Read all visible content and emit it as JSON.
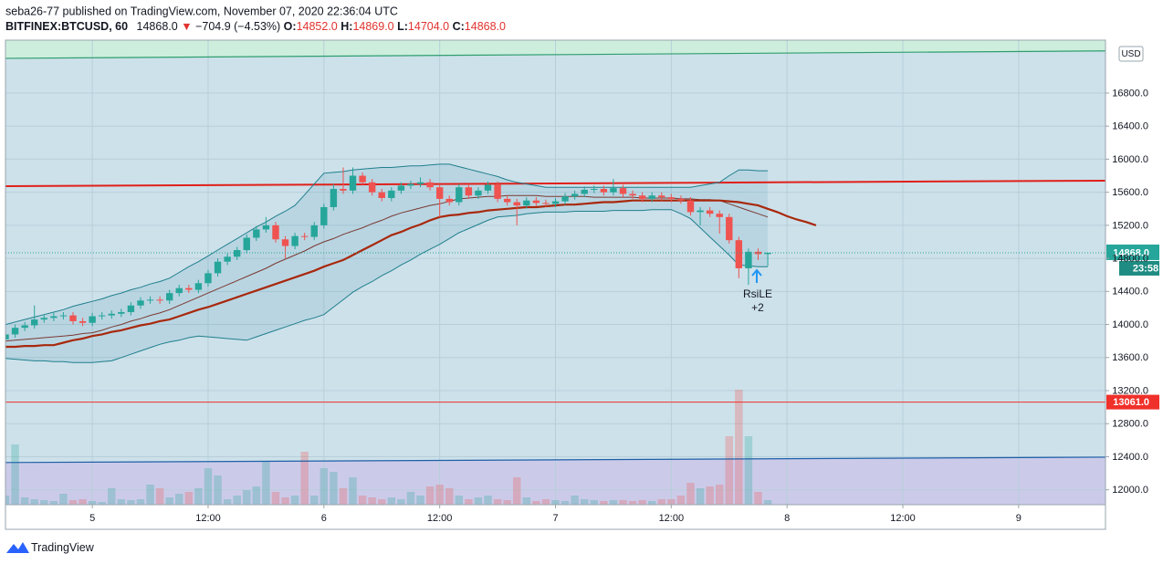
{
  "header": {
    "published": "seba26-77 published on TradingView.com, November 07, 2020 22:36:04 UTC",
    "symbol": "BITFINEX:BTCUSD, 60",
    "price": "14868.0",
    "arrow": "▼",
    "change": "−704.9 (−4.53%)",
    "o_label": "O:",
    "o": "14852.0",
    "h_label": "H:",
    "h": "14869.0",
    "l_label": "L:",
    "l": "14704.0",
    "c_label": "C:",
    "c": "14868.0"
  },
  "footer": {
    "brand": "TradingView"
  },
  "chart_data": {
    "type": "candlestick",
    "currency": "USD",
    "up_color": "#26a69a",
    "down_color": "#ef5350",
    "background": "#cde1ea",
    "grid": true,
    "xlim": [
      0,
      114
    ],
    "xticks": [
      {
        "value": 9,
        "label": "5"
      },
      {
        "value": 21,
        "label": "12:00"
      },
      {
        "value": 33,
        "label": "6"
      },
      {
        "value": 45,
        "label": "12:00"
      },
      {
        "value": 57,
        "label": "7"
      },
      {
        "value": 69,
        "label": "12:00"
      },
      {
        "value": 81,
        "label": "8"
      },
      {
        "value": 93,
        "label": "12:00"
      },
      {
        "value": 105,
        "label": "9"
      }
    ],
    "ylim": [
      11820,
      17440
    ],
    "yticks": [
      {
        "value": 12000,
        "label": "12000.0"
      },
      {
        "value": 12400,
        "label": "12400.0"
      },
      {
        "value": 12800,
        "label": "12800.0"
      },
      {
        "value": 13200,
        "label": "13200.0"
      },
      {
        "value": 13600,
        "label": "13600.0"
      },
      {
        "value": 14000,
        "label": "14000.0"
      },
      {
        "value": 14400,
        "label": "14400.0"
      },
      {
        "value": 14800,
        "label": "14800.0"
      },
      {
        "value": 15200,
        "label": "15200.0"
      },
      {
        "value": 15600,
        "label": "15600.0"
      },
      {
        "value": 16000,
        "label": "16000.0"
      },
      {
        "value": 16400,
        "label": "16400.0"
      },
      {
        "value": 16800,
        "label": "16800.0"
      }
    ],
    "open": [
      13820,
      13880,
      13960,
      13990,
      14060,
      14080,
      14100,
      14110,
      14040,
      14020,
      14100,
      14110,
      14130,
      14150,
      14230,
      14290,
      14300,
      14290,
      14380,
      14440,
      14420,
      14500,
      14620,
      14760,
      14820,
      14900,
      15050,
      15150,
      15200,
      15030,
      14950,
      15070,
      15060,
      15200,
      15420,
      15640,
      15620,
      15800,
      15720,
      15600,
      15530,
      15620,
      15680,
      15700,
      15720,
      15660,
      15520,
      15480,
      15660,
      15560,
      15620,
      15690,
      15520,
      15480,
      15440,
      15500,
      15470,
      15460,
      15490,
      15550,
      15580,
      15630,
      15640,
      15600,
      15650,
      15580,
      15560,
      15520,
      15560,
      15540,
      15520,
      15500,
      15360,
      15380,
      15340,
      15300,
      15020,
      14680,
      14880,
      14852
    ],
    "high": [
      13920,
      14000,
      14030,
      14230,
      14120,
      14140,
      14150,
      14150,
      14080,
      14140,
      14150,
      14170,
      14190,
      14270,
      14330,
      14340,
      14340,
      14420,
      14480,
      14480,
      14540,
      14660,
      14800,
      14860,
      14940,
      15090,
      15190,
      15300,
      15240,
      15070,
      15110,
      15110,
      15240,
      15460,
      15700,
      15900,
      15900,
      15840,
      15760,
      15640,
      15660,
      15720,
      15740,
      15780,
      15760,
      15700,
      15560,
      15700,
      15700,
      15660,
      15730,
      15730,
      15560,
      15520,
      15540,
      15540,
      15510,
      15530,
      15590,
      15620,
      15670,
      15680,
      15680,
      15760,
      15690,
      15620,
      15600,
      15600,
      15600,
      15580,
      15560,
      15540,
      15420,
      15420,
      15380,
      15340,
      15060,
      14920,
      14920,
      14869
    ],
    "low": [
      13780,
      13840,
      13920,
      13950,
      14020,
      14040,
      14060,
      14000,
      13980,
      13980,
      14060,
      14070,
      14090,
      14110,
      14190,
      14250,
      14250,
      14250,
      14340,
      14380,
      14380,
      14460,
      14580,
      14720,
      14780,
      14860,
      15010,
      15110,
      14990,
      14800,
      14910,
      15020,
      15020,
      15160,
      15380,
      15580,
      15580,
      15680,
      15560,
      15490,
      15490,
      15580,
      15640,
      15660,
      15620,
      15300,
      15440,
      15440,
      15520,
      15520,
      15580,
      15480,
      15440,
      15200,
      15400,
      15430,
      15420,
      15420,
      15450,
      15510,
      15540,
      15590,
      15560,
      15560,
      15540,
      15520,
      15480,
      15480,
      15500,
      15480,
      15460,
      15320,
      15200,
      15300,
      15100,
      14980,
      14560,
      14480,
      14780,
      14704
    ],
    "close": [
      13880,
      13960,
      13990,
      14060,
      14080,
      14100,
      14110,
      14040,
      14020,
      14100,
      14110,
      14130,
      14150,
      14230,
      14290,
      14300,
      14290,
      14380,
      14440,
      14420,
      14500,
      14620,
      14760,
      14820,
      14900,
      15050,
      15150,
      15200,
      15030,
      14950,
      15070,
      15060,
      15200,
      15420,
      15640,
      15620,
      15800,
      15720,
      15600,
      15530,
      15620,
      15680,
      15700,
      15720,
      15660,
      15520,
      15480,
      15660,
      15560,
      15620,
      15690,
      15520,
      15480,
      15440,
      15500,
      15470,
      15460,
      15490,
      15550,
      15580,
      15630,
      15640,
      15600,
      15650,
      15580,
      15560,
      15520,
      15560,
      15540,
      15520,
      15500,
      15360,
      15380,
      15340,
      15300,
      15020,
      14680,
      14880,
      14852,
      14868
    ],
    "volume": [
      10,
      66,
      8,
      6,
      5,
      4,
      12,
      5,
      6,
      4,
      3,
      18,
      6,
      5,
      6,
      22,
      18,
      8,
      12,
      14,
      18,
      40,
      32,
      6,
      10,
      16,
      20,
      48,
      14,
      8,
      10,
      58,
      10,
      40,
      36,
      18,
      30,
      10,
      8,
      6,
      8,
      6,
      14,
      10,
      20,
      22,
      18,
      10,
      6,
      8,
      10,
      6,
      5,
      30,
      8,
      4,
      6,
      5,
      4,
      10,
      6,
      5,
      4,
      5,
      5,
      4,
      5,
      4,
      6,
      6,
      10,
      24,
      18,
      20,
      22,
      75,
      126,
      75,
      14,
      5
    ],
    "band_fill": "rgba(40,130,170,0.12)",
    "series": [
      {
        "color": "#1f7f8c",
        "width": 1,
        "values": [
          14000,
          14030,
          14060,
          14090,
          14120,
          14150,
          14180,
          14220,
          14250,
          14280,
          14310,
          14350,
          14380,
          14420,
          14450,
          14490,
          14520,
          14560,
          14630,
          14700,
          14760,
          14830,
          14900,
          14970,
          15040,
          15110,
          15180,
          15240,
          15310,
          15370,
          15440,
          15570,
          15700,
          15830,
          15840,
          15850,
          15870,
          15880,
          15890,
          15900,
          15900,
          15910,
          15920,
          15920,
          15930,
          15940,
          15940,
          15910,
          15880,
          15850,
          15820,
          15790,
          15750,
          15720,
          15700,
          15680,
          15660,
          15660,
          15660,
          15660,
          15660,
          15660,
          15660,
          15660,
          15660,
          15660,
          15660,
          15660,
          15660,
          15660,
          15660,
          15660,
          15680,
          15700,
          15720,
          15800,
          15870,
          15870,
          15860,
          15860,
          null,
          null,
          null,
          null,
          null
        ]
      },
      {
        "color": "#1f7f8c",
        "width": 1,
        "values": [
          13590,
          13580,
          13570,
          13560,
          13560,
          13550,
          13550,
          13540,
          13540,
          13540,
          13550,
          13560,
          13600,
          13640,
          13680,
          13720,
          13760,
          13790,
          13810,
          13840,
          13860,
          13850,
          13840,
          13830,
          13820,
          13810,
          13850,
          13890,
          13930,
          13970,
          14010,
          14050,
          14080,
          14120,
          14210,
          14300,
          14390,
          14460,
          14520,
          14590,
          14650,
          14720,
          14780,
          14850,
          14910,
          14970,
          15040,
          15110,
          15160,
          15210,
          15260,
          15300,
          15310,
          15320,
          15340,
          15350,
          15360,
          15360,
          15360,
          15370,
          15370,
          15370,
          15370,
          15380,
          15380,
          15380,
          15380,
          15390,
          15390,
          15390,
          15340,
          15280,
          15170,
          15060,
          14950,
          14840,
          14720,
          14710,
          14700,
          14700,
          null,
          null,
          null,
          null,
          null
        ]
      },
      {
        "color": "#7a3a32",
        "width": 1,
        "values": [
          13800,
          13810,
          13820,
          13830,
          13840,
          13850,
          13860,
          13870,
          13890,
          13900,
          13930,
          13970,
          14000,
          14040,
          14070,
          14110,
          14140,
          14180,
          14230,
          14280,
          14330,
          14380,
          14430,
          14480,
          14530,
          14580,
          14630,
          14680,
          14740,
          14790,
          14840,
          14890,
          14950,
          15000,
          15040,
          15090,
          15130,
          15170,
          15220,
          15260,
          15310,
          15350,
          15380,
          15410,
          15440,
          15460,
          15490,
          15520,
          15530,
          15540,
          15550,
          15550,
          15560,
          15560,
          15560,
          15560,
          15550,
          15550,
          15550,
          15550,
          15550,
          15540,
          15540,
          15540,
          15540,
          15540,
          15530,
          15530,
          15530,
          15530,
          15520,
          15520,
          15510,
          15510,
          15500,
          15460,
          15420,
          15380,
          15340,
          15300,
          null,
          null,
          null,
          null,
          null
        ]
      },
      {
        "color": "#a8280c",
        "width": 2.2,
        "values": [
          13730,
          13730,
          13740,
          13740,
          13750,
          13750,
          13780,
          13810,
          13830,
          13860,
          13880,
          13910,
          13930,
          13960,
          13990,
          14010,
          14040,
          14060,
          14100,
          14140,
          14180,
          14210,
          14250,
          14290,
          14330,
          14370,
          14410,
          14450,
          14490,
          14530,
          14570,
          14610,
          14650,
          14700,
          14740,
          14780,
          14840,
          14900,
          14960,
          15020,
          15080,
          15120,
          15170,
          15210,
          15260,
          15300,
          15320,
          15330,
          15350,
          15360,
          15380,
          15390,
          15400,
          15410,
          15420,
          15420,
          15430,
          15440,
          15450,
          15450,
          15460,
          15470,
          15480,
          15480,
          15490,
          15500,
          15500,
          15500,
          15500,
          15500,
          15500,
          15500,
          15500,
          15500,
          15500,
          15490,
          15480,
          15460,
          15440,
          15400,
          15360,
          15310,
          15270,
          15240,
          15200
        ]
      }
    ],
    "trendlines": [
      {
        "values": [
          17220,
          17310
        ],
        "color": "#2e9e6e",
        "width": 1.2,
        "fill_side": "above",
        "fill_color": "#cdeedd"
      },
      {
        "values": [
          12330,
          12395
        ],
        "color": "#1f5fa8",
        "width": 1.2,
        "fill_side": "below",
        "fill_color": "#cbcbe9"
      },
      {
        "values": [
          15674,
          15740
        ],
        "color": "#e0201a",
        "width": 2
      }
    ],
    "levels": [
      {
        "value": 13061,
        "label": "13061.0",
        "color": "#f0302a"
      }
    ],
    "last_price": {
      "value": 14868,
      "label": "14868.0",
      "countdown": "23:58",
      "color": "#26a69a"
    },
    "annotations": [
      {
        "text": "RsiLE"
      },
      {
        "text": "+2"
      }
    ]
  }
}
